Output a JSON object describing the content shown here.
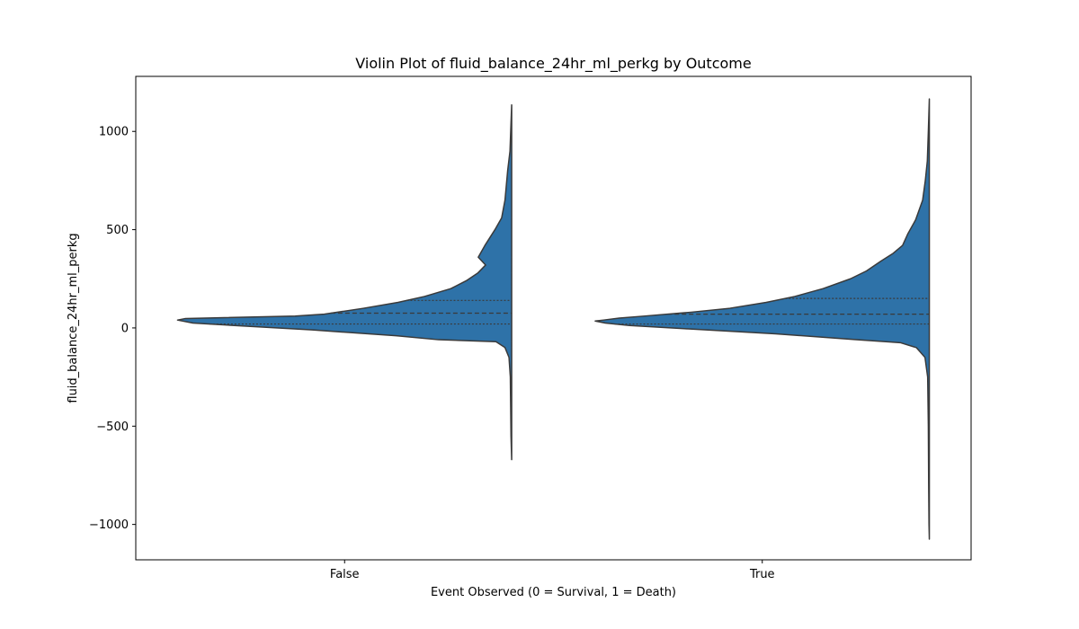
{
  "chart_data": {
    "type": "violin",
    "title": "Violin Plot of fluid_balance_24hr_ml_perkg by Outcome",
    "xlabel": "Event Observed (0 = Survival, 1 = Death)",
    "ylabel": "fluid_balance_24hr_ml_perkg",
    "ylim": [
      -1180,
      1280
    ],
    "yticks": [
      -1000,
      -500,
      0,
      500,
      1000
    ],
    "ytick_labels": [
      "−1000",
      "−500",
      "0",
      "500",
      "1000"
    ],
    "categories": [
      "False",
      "True"
    ],
    "grid": false,
    "violins": [
      {
        "category": "False",
        "min": -670,
        "max": 1135,
        "q1": 20,
        "median": 75,
        "q3": 140,
        "density": [
          [
            1135,
            0.0
          ],
          [
            900,
            0.005
          ],
          [
            800,
            0.012
          ],
          [
            650,
            0.02
          ],
          [
            560,
            0.03
          ],
          [
            500,
            0.05
          ],
          [
            420,
            0.08
          ],
          [
            360,
            0.1
          ],
          [
            320,
            0.078
          ],
          [
            280,
            0.101
          ],
          [
            240,
            0.136
          ],
          [
            200,
            0.182
          ],
          [
            160,
            0.261
          ],
          [
            130,
            0.34
          ],
          [
            100,
            0.443
          ],
          [
            70,
            0.561
          ],
          [
            60,
            0.648
          ],
          [
            48,
            0.976
          ],
          [
            40,
            1.0
          ],
          [
            25,
            0.954
          ],
          [
            10,
            0.806
          ],
          [
            -10,
            0.597
          ],
          [
            -40,
            0.346
          ],
          [
            -60,
            0.219
          ],
          [
            -70,
            0.047
          ],
          [
            -100,
            0.02
          ],
          [
            -150,
            0.008
          ],
          [
            -250,
            0.004
          ],
          [
            -400,
            0.003
          ],
          [
            -550,
            0.002
          ],
          [
            -670,
            0.0
          ]
        ]
      },
      {
        "category": "True",
        "min": -1075,
        "max": 1165,
        "q1": 20,
        "median": 70,
        "q3": 150,
        "density": [
          [
            1165,
            0.0
          ],
          [
            1000,
            0.003
          ],
          [
            850,
            0.006
          ],
          [
            750,
            0.012
          ],
          [
            650,
            0.02
          ],
          [
            550,
            0.041
          ],
          [
            480,
            0.064
          ],
          [
            420,
            0.08
          ],
          [
            380,
            0.108
          ],
          [
            340,
            0.145
          ],
          [
            290,
            0.188
          ],
          [
            250,
            0.236
          ],
          [
            200,
            0.318
          ],
          [
            160,
            0.403
          ],
          [
            130,
            0.488
          ],
          [
            100,
            0.597
          ],
          [
            80,
            0.713
          ],
          [
            60,
            0.855
          ],
          [
            50,
            0.928
          ],
          [
            40,
            0.975
          ],
          [
            35,
            1.0
          ],
          [
            25,
            0.97
          ],
          [
            12,
            0.897
          ],
          [
            -5,
            0.721
          ],
          [
            -30,
            0.46
          ],
          [
            -60,
            0.219
          ],
          [
            -75,
            0.087
          ],
          [
            -100,
            0.039
          ],
          [
            -150,
            0.013
          ],
          [
            -250,
            0.005
          ],
          [
            -500,
            0.003
          ],
          [
            -800,
            0.002
          ],
          [
            -1000,
            0.001
          ],
          [
            -1075,
            0.0
          ]
        ]
      }
    ]
  }
}
